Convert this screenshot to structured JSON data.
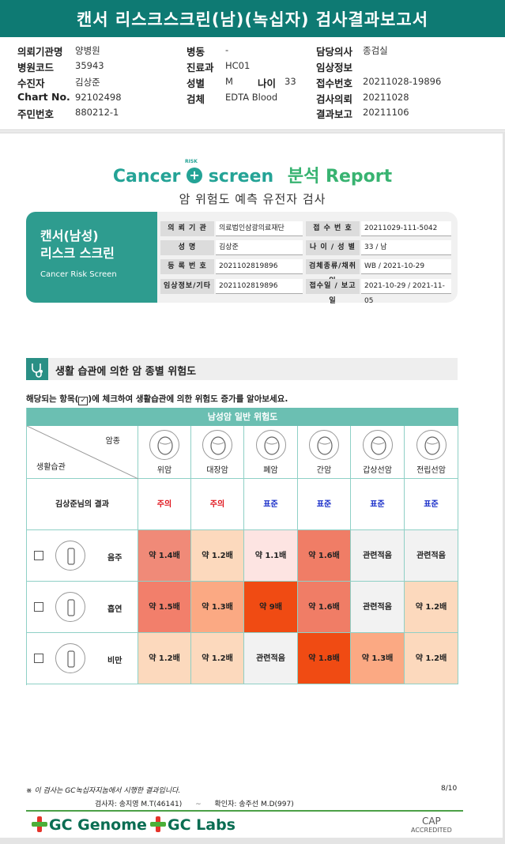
{
  "title": "캔서 리스크스크린(남)(녹십자) 검사결과보고서",
  "header": {
    "col1": [
      {
        "k": "의뢰기관명",
        "v": "양병원"
      },
      {
        "k": "병원코드",
        "v": "35943"
      },
      {
        "k": "수진자",
        "v": "김상준"
      },
      {
        "k": "Chart No.",
        "v": "92102498"
      },
      {
        "k": "주민번호",
        "v": "880212-1"
      }
    ],
    "col2": [
      {
        "k": "병동",
        "v": "-"
      },
      {
        "k": "진료과",
        "v": "HC01"
      },
      {
        "k": "성별",
        "v": "M"
      },
      {
        "k": "검체",
        "v": "EDTA Blood"
      }
    ],
    "age": {
      "k": "나이",
      "v": "33"
    },
    "col3": [
      {
        "k": "담당의사",
        "v": "종검실"
      },
      {
        "k": "임상정보",
        "v": ""
      },
      {
        "k": "접수번호",
        "v": "20211028-19896"
      },
      {
        "k": "검사의뢰",
        "v": "20211028"
      },
      {
        "k": "결과보고",
        "v": "20211106"
      }
    ]
  },
  "logo": {
    "cancer": "Cancer",
    "risk": "RISK",
    "screen": "screen",
    "bunseok": "분석",
    "report": "Report",
    "subtitle": "암 위험도 예측 유전자 검사"
  },
  "card": {
    "line1": "캔서(남성)",
    "line2": "리스크 스크린",
    "line3": "Cancer Risk Screen"
  },
  "info": [
    {
      "k": "의 뢰 기 관",
      "v": "의료법인삼광의료재단",
      "k2": "접 수 번 호",
      "v2": "20211029-111-5042"
    },
    {
      "k": "성 명",
      "v": "김상준",
      "k2": "나 이 / 성 별",
      "v2": "33 / 남"
    },
    {
      "k": "등 록 번 호",
      "v": "2021102819896",
      "k2": "검체종류/채취일",
      "v2": "WB / 2021-10-29"
    },
    {
      "k": "임상정보/기타",
      "v": "2021102819896",
      "k2": "접수일 / 보고일",
      "v2": "2021-10-29 / 2021-11-05"
    }
  ],
  "section": {
    "title": "생활 습관에 의한 암 종별 위험도",
    "note_pre": "해당되는 항목(",
    "note_check": "✓",
    "note_post": ")에 체크하여 생활습관에 의한 위험도 증가를 알아보세요."
  },
  "table": {
    "header": "남성암 일반 위험도",
    "corner_top": "암종",
    "corner_bottom": "생활습관",
    "organs": [
      "위암",
      "대장암",
      "폐암",
      "간암",
      "갑상선암",
      "전립선암"
    ],
    "result_label": "김상준님의 결과",
    "results": [
      {
        "text": "주의",
        "color": "#e0171f"
      },
      {
        "text": "주의",
        "color": "#e0171f"
      },
      {
        "text": "표준",
        "color": "#1a2fc9"
      },
      {
        "text": "표준",
        "color": "#1a2fc9"
      },
      {
        "text": "표준",
        "color": "#1a2fc9"
      },
      {
        "text": "표준",
        "color": "#1a2fc9"
      }
    ],
    "rows": [
      {
        "habit": "음주",
        "checked": false,
        "cells": [
          {
            "t": "약 1.4배",
            "c": "#f08a78"
          },
          {
            "t": "약 1.2배",
            "c": "#fcd9bd"
          },
          {
            "t": "약 1.1배",
            "c": "#fde4e2"
          },
          {
            "t": "약 1.6배",
            "c": "#f07d66"
          },
          {
            "t": "관련적음",
            "c": "#f2f2f2"
          },
          {
            "t": "관련적음",
            "c": "#f2f2f2"
          }
        ]
      },
      {
        "habit": "흡연",
        "checked": false,
        "cells": [
          {
            "t": "약 1.5배",
            "c": "#f27f6b"
          },
          {
            "t": "약 1.3배",
            "c": "#fba983"
          },
          {
            "t": "약 9배",
            "c": "#f04b13"
          },
          {
            "t": "약 1.6배",
            "c": "#f07d66"
          },
          {
            "t": "관련적음",
            "c": "#f2f2f2"
          },
          {
            "t": "약 1.2배",
            "c": "#fcd9bd"
          }
        ]
      },
      {
        "habit": "비만",
        "checked": false,
        "cells": [
          {
            "t": "약 1.2배",
            "c": "#fcd9bd"
          },
          {
            "t": "약 1.2배",
            "c": "#fcd9bd"
          },
          {
            "t": "관련적음",
            "c": "#f2f2f2"
          },
          {
            "t": "약 1.8배",
            "c": "#f04b13"
          },
          {
            "t": "약 1.3배",
            "c": "#fba983"
          },
          {
            "t": "약 1.2배",
            "c": "#fcd9bd"
          }
        ]
      }
    ]
  },
  "footer": {
    "note": "※ 이 검사는 GC녹십자지놈에서 시행한 결과입니다.",
    "page": "8/10",
    "inspector": "검사자: 송지영 M.T(46141)",
    "confirmer": "확인자: 송주선 M.D(997)",
    "brand1": "GC Genome",
    "brand2": "GC Labs",
    "cap": "CAP",
    "cap_sub": "ACCREDITED"
  },
  "colors": {
    "title_bar": "#0e7a73",
    "table_header": "#6bbfb2",
    "card": "#2e9c8f"
  }
}
